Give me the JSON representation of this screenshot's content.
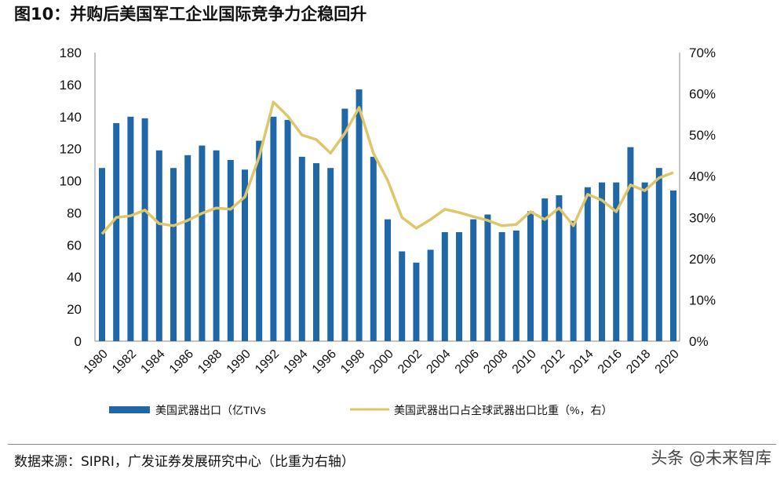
{
  "title": "图10：并购后美国军工企业国际竞争力企稳回升",
  "source": "数据来源：SIPRI，广发证券发展研究中心（比重为右轴）",
  "watermark": "头条 @未来智库",
  "chart_data": {
    "type": "bar+line",
    "categories": [
      1980,
      1981,
      1982,
      1983,
      1984,
      1985,
      1986,
      1987,
      1988,
      1989,
      1990,
      1991,
      1992,
      1993,
      1994,
      1995,
      1996,
      1997,
      1998,
      1999,
      2000,
      2001,
      2002,
      2003,
      2004,
      2005,
      2006,
      2007,
      2008,
      2009,
      2010,
      2011,
      2012,
      2013,
      2014,
      2015,
      2016,
      2017,
      2018,
      2019,
      2020
    ],
    "x_tick_labels": [
      "1980",
      "1982",
      "1984",
      "1986",
      "1988",
      "1990",
      "1992",
      "1994",
      "1996",
      "1998",
      "2000",
      "2002",
      "2004",
      "2006",
      "2008",
      "2010",
      "2012",
      "2014",
      "2016",
      "2018",
      "2020"
    ],
    "series": [
      {
        "name": "美国武器出口（亿TIVs",
        "type": "bar",
        "axis": "left",
        "color": "#1f67a6",
        "values": [
          108,
          136,
          140,
          139,
          119,
          108,
          116,
          122,
          119,
          113,
          107,
          125,
          140,
          138,
          115,
          111,
          108,
          145,
          157,
          115,
          76,
          56,
          49,
          57,
          68,
          68,
          76,
          79,
          68,
          69,
          81,
          89,
          91,
          75,
          96,
          99,
          99,
          121,
          99,
          108,
          94
        ]
      },
      {
        "name": "美国武器出口占全球武器出口比重（%，右）",
        "type": "line",
        "axis": "right",
        "color": "#e0c66a",
        "values": [
          26,
          30,
          30.4,
          31.8,
          28.5,
          28,
          29.3,
          31,
          32.3,
          32,
          35,
          44.7,
          58,
          54.6,
          50,
          48.9,
          45.6,
          50.4,
          56.7,
          45.6,
          39,
          30,
          27.4,
          29.5,
          32,
          31.2,
          30.2,
          29.3,
          28,
          28.3,
          31.4,
          29.5,
          32.3,
          28,
          35.6,
          34.2,
          31.4,
          37.9,
          36.5,
          39.6,
          40.9
        ]
      }
    ],
    "y_left": {
      "range": [
        0,
        180
      ],
      "ticks": [
        "0",
        "20",
        "40",
        "60",
        "80",
        "100",
        "120",
        "140",
        "160",
        "180"
      ]
    },
    "y_right": {
      "range": [
        0,
        70
      ],
      "ticks": [
        "0%",
        "10%",
        "20%",
        "30%",
        "40%",
        "50%",
        "60%",
        "70%"
      ]
    },
    "grid": false,
    "legend_position": "bottom"
  }
}
